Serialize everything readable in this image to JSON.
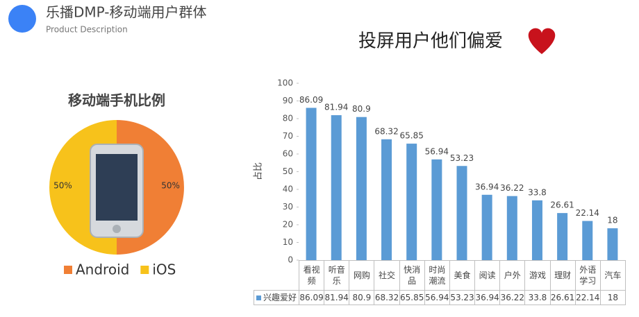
{
  "header": {
    "title": "乐播DMP-移动端用户群体",
    "subtitle": "Product Description"
  },
  "chart_data": [
    {
      "type": "pie",
      "title": "移动端手机比例",
      "categories": [
        "Android",
        "iOS"
      ],
      "values": [
        50,
        50
      ],
      "value_labels": [
        "50%",
        "50%"
      ],
      "colors": [
        "#f07f35",
        "#f7c21b"
      ]
    },
    {
      "type": "bar",
      "title": "投屏用户他们偏爱",
      "ylabel": "占比",
      "categories": [
        "看视频",
        "听音乐",
        "网购",
        "社交",
        "快消品",
        "时尚潮流",
        "美食",
        "阅读",
        "户外",
        "游戏",
        "理财",
        "外语学习",
        "汽车"
      ],
      "series": [
        {
          "name": "兴趣爱好",
          "color": "#5b9bd5",
          "values": [
            86.09,
            81.94,
            80.9,
            68.32,
            65.85,
            56.94,
            53.23,
            36.94,
            36.22,
            33.8,
            26.61,
            22.14,
            18
          ]
        }
      ],
      "ylim": [
        0,
        100
      ],
      "yticks": [
        0,
        10,
        20,
        30,
        40,
        50,
        60,
        70,
        80,
        90,
        100
      ],
      "grid": false,
      "data_table": true
    }
  ]
}
